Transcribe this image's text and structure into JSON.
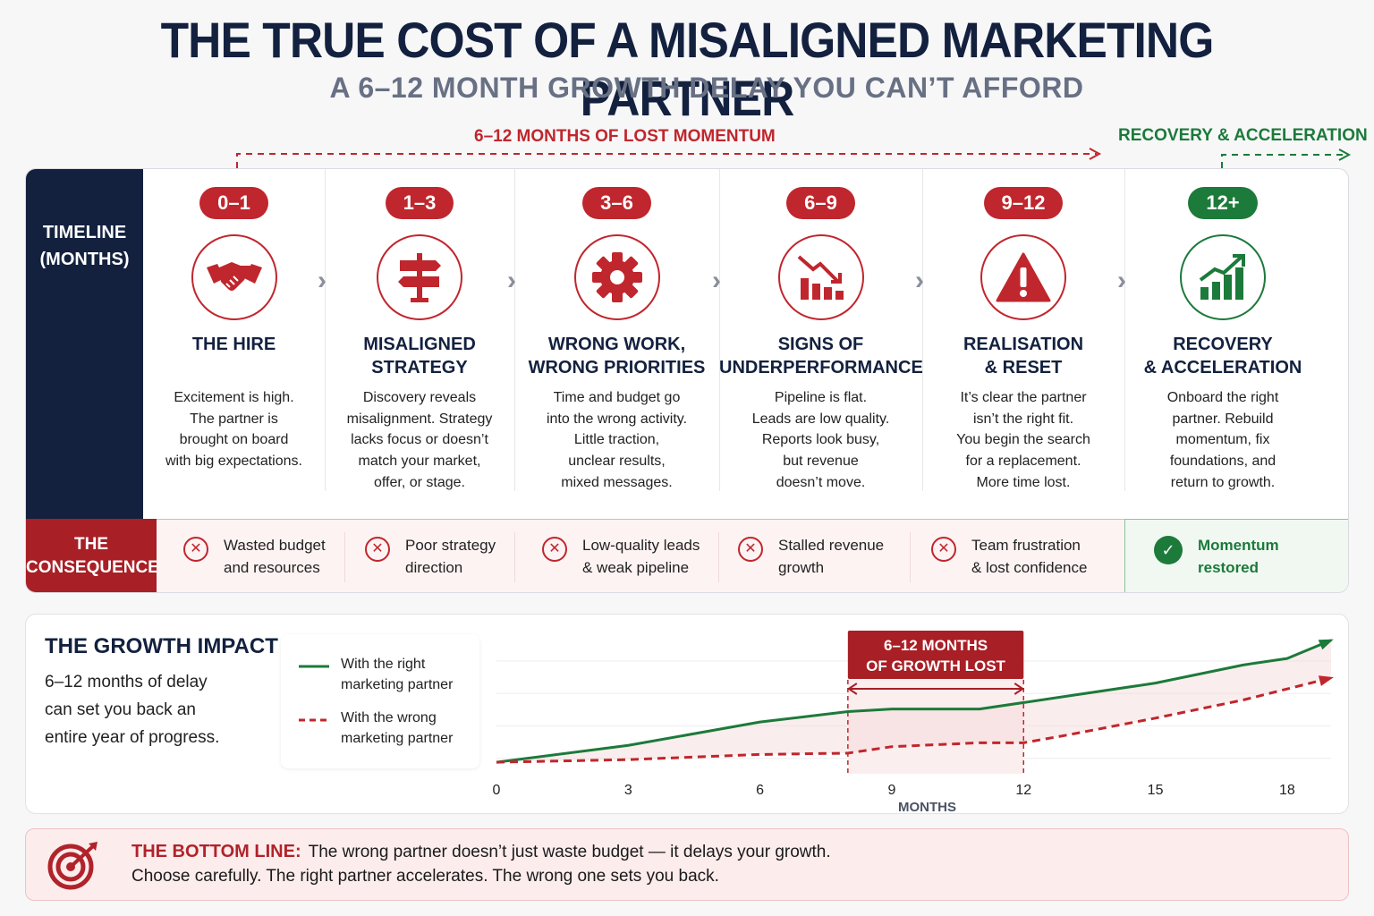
{
  "header": {
    "title": "THE TRUE COST OF A MISALIGNED MARKETING PARTNER",
    "subtitle": "A 6–12 MONTH GROWTH DELAY YOU CAN’T AFFORD"
  },
  "span_labels": {
    "lost": "6–12 MONTHS OF LOST MOMENTUM",
    "recovery": "RECOVERY & ACCELERATION"
  },
  "timeline": {
    "side_label_1": "TIMELINE",
    "side_label_2": "(MONTHS)",
    "stages": [
      {
        "badge": "0–1",
        "icon": "handshake-icon",
        "title_1": "THE HIRE",
        "title_2": "",
        "desc": [
          "Excitement is high.",
          "The partner is",
          "brought on board",
          "with big expectations."
        ]
      },
      {
        "badge": "1–3",
        "icon": "signpost-icon",
        "title_1": "MISALIGNED",
        "title_2": "STRATEGY",
        "desc": [
          "Discovery reveals",
          "misalignment. Strategy",
          "lacks focus or doesn’t",
          "match your market,",
          "offer, or stage."
        ]
      },
      {
        "badge": "3–6",
        "icon": "gear-icon",
        "title_1": "WRONG WORK,",
        "title_2": "WRONG PRIORITIES",
        "desc": [
          "Time and budget go",
          "into the wrong activity.",
          "Little traction,",
          "unclear results,",
          "mixed messages."
        ]
      },
      {
        "badge": "6–9",
        "icon": "declining-chart-icon",
        "title_1": "SIGNS OF",
        "title_2": "UNDERPERFORMANCE",
        "desc": [
          "Pipeline is flat.",
          "Leads are low quality.",
          "Reports look busy,",
          "but revenue",
          "doesn’t move."
        ]
      },
      {
        "badge": "9–12",
        "icon": "warning-icon",
        "title_1": "REALISATION",
        "title_2": "& RESET",
        "desc": [
          "It’s clear the partner",
          "isn’t the right fit.",
          "You begin the search",
          "for a replacement.",
          "More time lost."
        ]
      },
      {
        "badge": "12+",
        "icon": "growth-chart-icon",
        "title_1": "RECOVERY",
        "title_2": "& ACCELERATION",
        "desc": [
          "Onboard the right",
          "partner. Rebuild",
          "momentum, fix",
          "foundations, and",
          "return to growth."
        ]
      }
    ]
  },
  "consequence": {
    "side_label_1": "THE",
    "side_label_2": "CONSEQUENCE",
    "items": [
      {
        "line1": "Wasted budget",
        "line2": "and resources"
      },
      {
        "line1": "Poor strategy",
        "line2": "direction"
      },
      {
        "line1": "Low-quality leads",
        "line2": "& weak pipeline"
      },
      {
        "line1": "Stalled revenue",
        "line2": "growth"
      },
      {
        "line1": "Team frustration",
        "line2": "& lost confidence"
      }
    ],
    "positive": {
      "line1": "Momentum",
      "line2": "restored"
    }
  },
  "impact": {
    "title": "THE GROWTH IMPACT",
    "desc_1": "6–12 months of delay",
    "desc_2": "can set you back an",
    "desc_3": "entire year of progress.",
    "legend": [
      {
        "line1": "With the right",
        "line2": "marketing partner",
        "color": "#1c7a3a",
        "style": "solid"
      },
      {
        "line1": "With the wrong",
        "line2": "marketing partner",
        "color": "#c0262d",
        "style": "dashed"
      }
    ],
    "gap_label_1": "6–12 MONTHS",
    "gap_label_2": "OF GROWTH LOST"
  },
  "chart_data": {
    "type": "line",
    "xlabel": "MONTHS",
    "ylabel": "",
    "x_ticks": [
      0,
      3,
      6,
      9,
      12,
      15,
      18
    ],
    "xlim": [
      0,
      19
    ],
    "ylim": [
      0,
      10
    ],
    "highlight_range": [
      8,
      12
    ],
    "series": [
      {
        "name": "With the right marketing partner",
        "color": "#1c7a3a",
        "style": "solid",
        "points": [
          [
            0,
            0.2
          ],
          [
            3,
            1.5
          ],
          [
            6,
            3.3
          ],
          [
            8,
            4.1
          ],
          [
            9,
            4.3
          ],
          [
            11,
            4.3
          ],
          [
            13,
            5.3
          ],
          [
            15,
            6.3
          ],
          [
            17,
            7.7
          ],
          [
            18,
            8.2
          ],
          [
            19,
            9.6
          ]
        ]
      },
      {
        "name": "With the wrong marketing partner",
        "color": "#c0262d",
        "style": "dashed",
        "points": [
          [
            0,
            0.2
          ],
          [
            3,
            0.4
          ],
          [
            6,
            0.8
          ],
          [
            8,
            0.9
          ],
          [
            9,
            1.4
          ],
          [
            11,
            1.7
          ],
          [
            12,
            1.7
          ],
          [
            13,
            2.3
          ],
          [
            15,
            3.6
          ],
          [
            17,
            5.0
          ],
          [
            19,
            6.7
          ]
        ]
      }
    ]
  },
  "bottom_line": {
    "lead": "THE BOTTOM LINE:",
    "text_1": "The wrong partner doesn’t just waste budget — it delays your growth.",
    "text_2": "Choose carefully. The right partner accelerates. The wrong one sets you back."
  },
  "colors": {
    "navy": "#13213f",
    "red": "#c0262d",
    "dark_red": "#a81f26",
    "green": "#1c7a3a",
    "gray": "#687084"
  }
}
